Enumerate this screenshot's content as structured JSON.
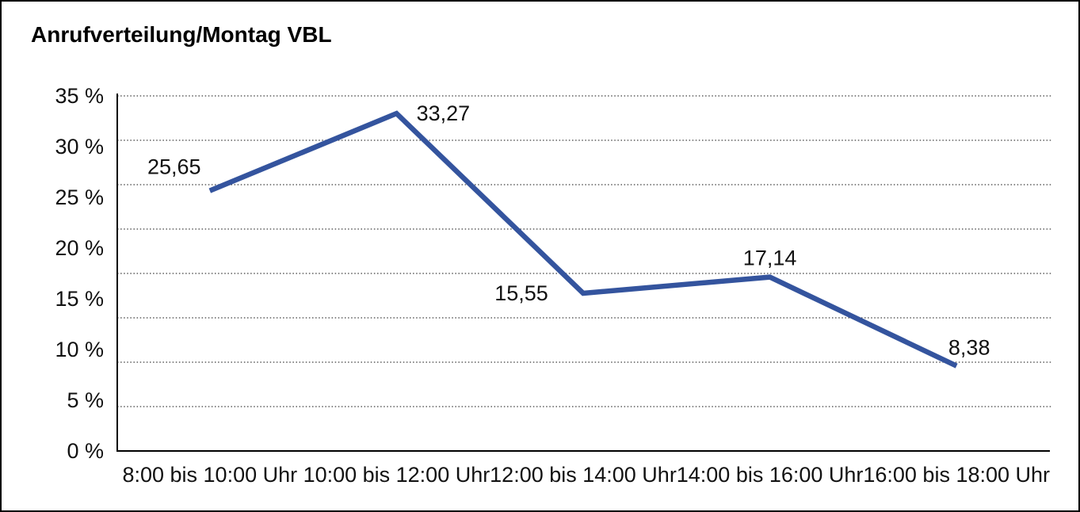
{
  "title": "Anrufverteilung/Montag VBL",
  "chart_data": {
    "type": "line",
    "title": "Anrufverteilung/Montag VBL",
    "categories": [
      "8:00 bis 10:00 Uhr",
      "10:00 bis 12:00 Uhr",
      "12:00 bis 14:00 Uhr",
      "14:00 bis 16:00 Uhr",
      "16:00 bis 18:00 Uhr"
    ],
    "values": [
      25.65,
      33.27,
      15.55,
      17.14,
      8.38
    ],
    "value_labels": [
      "25,65",
      "33,27",
      "15,55",
      "17,14",
      "8,38"
    ],
    "y_ticks": [
      "35 %",
      "30 %",
      "25 %",
      "20 %",
      "15 %",
      "10 %",
      "5 %",
      "0 %"
    ],
    "ylim": [
      0,
      35
    ],
    "xlabel": "",
    "ylabel": "",
    "legend": "none",
    "grid": "horizontal-dotted",
    "line_color": "#34549E",
    "axis_color": "#000000",
    "grid_color": "#3c3c3c",
    "background_color": "#ffffff"
  }
}
